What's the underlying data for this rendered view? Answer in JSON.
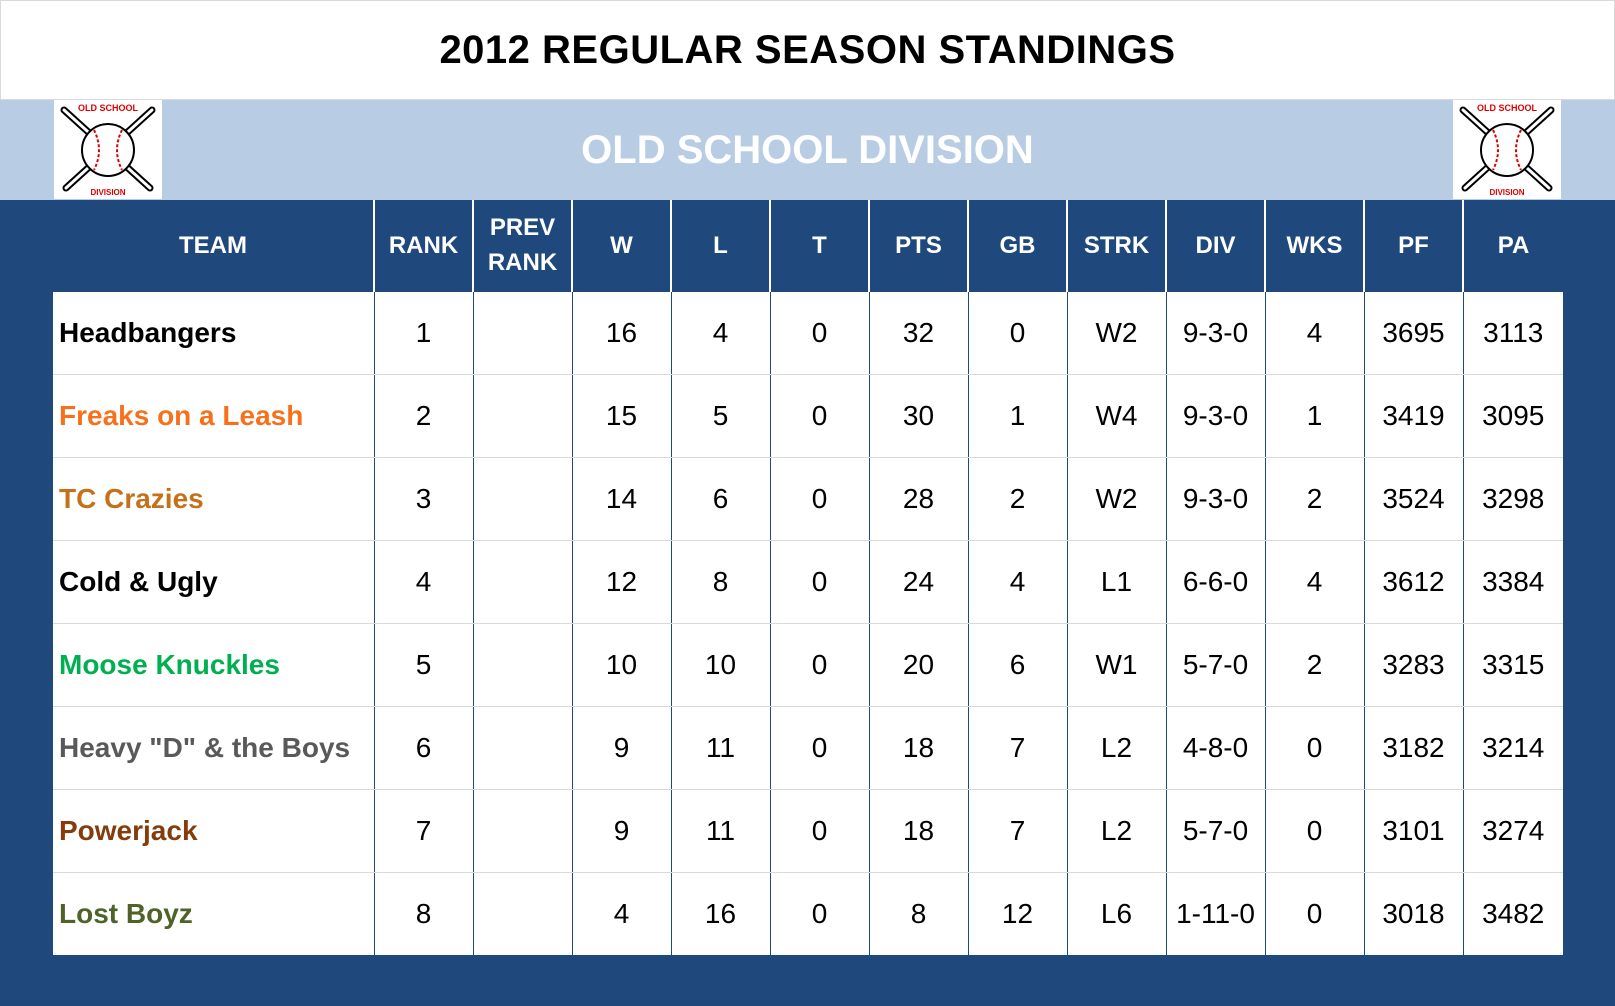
{
  "title": "2012 REGULAR SEASON STANDINGS",
  "division": "OLD SCHOOL DIVISION",
  "logo": {
    "top_text": "OLD SCHOOL",
    "bottom_text": "DIVISION"
  },
  "colors": {
    "navy": "#1f497d",
    "band": "#b8cce4"
  },
  "columns": [
    {
      "key": "team",
      "label_lines": [
        "TEAM"
      ]
    },
    {
      "key": "rank",
      "label_lines": [
        "RANK"
      ]
    },
    {
      "key": "prev_rank",
      "label_lines": [
        "PREV",
        "RANK"
      ]
    },
    {
      "key": "w",
      "label_lines": [
        "W"
      ]
    },
    {
      "key": "l",
      "label_lines": [
        "L"
      ]
    },
    {
      "key": "t",
      "label_lines": [
        "T"
      ]
    },
    {
      "key": "pts",
      "label_lines": [
        "PTS"
      ]
    },
    {
      "key": "gb",
      "label_lines": [
        "GB"
      ]
    },
    {
      "key": "strk",
      "label_lines": [
        "STRK"
      ]
    },
    {
      "key": "div",
      "label_lines": [
        "DIV"
      ]
    },
    {
      "key": "wks",
      "label_lines": [
        "WKS"
      ]
    },
    {
      "key": "pf",
      "label_lines": [
        "PF"
      ]
    },
    {
      "key": "pa",
      "label_lines": [
        "PA"
      ]
    }
  ],
  "rows": [
    {
      "team": "Headbangers",
      "color": "#000000",
      "rank": "1",
      "prev_rank": "",
      "w": "16",
      "l": "4",
      "t": "0",
      "pts": "32",
      "gb": "0",
      "strk": "W2",
      "div": "9-3-0",
      "wks": "4",
      "pf": "3695",
      "pa": "3113"
    },
    {
      "team": "Freaks on a Leash",
      "color": "#f7711c",
      "rank": "2",
      "prev_rank": "",
      "w": "15",
      "l": "5",
      "t": "0",
      "pts": "30",
      "gb": "1",
      "strk": "W4",
      "div": "9-3-0",
      "wks": "1",
      "pf": "3419",
      "pa": "3095"
    },
    {
      "team": "TC Crazies",
      "color": "#c5711b",
      "rank": "3",
      "prev_rank": "",
      "w": "14",
      "l": "6",
      "t": "0",
      "pts": "28",
      "gb": "2",
      "strk": "W2",
      "div": "9-3-0",
      "wks": "2",
      "pf": "3524",
      "pa": "3298"
    },
    {
      "team": "Cold & Ugly",
      "color": "#000000",
      "rank": "4",
      "prev_rank": "",
      "w": "12",
      "l": "8",
      "t": "0",
      "pts": "24",
      "gb": "4",
      "strk": "L1",
      "div": "6-6-0",
      "wks": "4",
      "pf": "3612",
      "pa": "3384"
    },
    {
      "team": "Moose Knuckles",
      "color": "#00b050",
      "rank": "5",
      "prev_rank": "",
      "w": "10",
      "l": "10",
      "t": "0",
      "pts": "20",
      "gb": "6",
      "strk": "W1",
      "div": "5-7-0",
      "wks": "2",
      "pf": "3283",
      "pa": "3315"
    },
    {
      "team": "Heavy \"D\" & the Boys",
      "color": "#595959",
      "rank": "6",
      "prev_rank": "",
      "w": "9",
      "l": "11",
      "t": "0",
      "pts": "18",
      "gb": "7",
      "strk": "L2",
      "div": "4-8-0",
      "wks": "0",
      "pf": "3182",
      "pa": "3214"
    },
    {
      "team": "Powerjack",
      "color": "#843c0c",
      "rank": "7",
      "prev_rank": "",
      "w": "9",
      "l": "11",
      "t": "0",
      "pts": "18",
      "gb": "7",
      "strk": "L2",
      "div": "5-7-0",
      "wks": "0",
      "pf": "3101",
      "pa": "3274"
    },
    {
      "team": "Lost Boyz",
      "color": "#4f6228",
      "rank": "8",
      "prev_rank": "",
      "w": "4",
      "l": "16",
      "t": "0",
      "pts": "8",
      "gb": "12",
      "strk": "L6",
      "div": "1-11-0",
      "wks": "0",
      "pf": "3018",
      "pa": "3482"
    }
  ]
}
